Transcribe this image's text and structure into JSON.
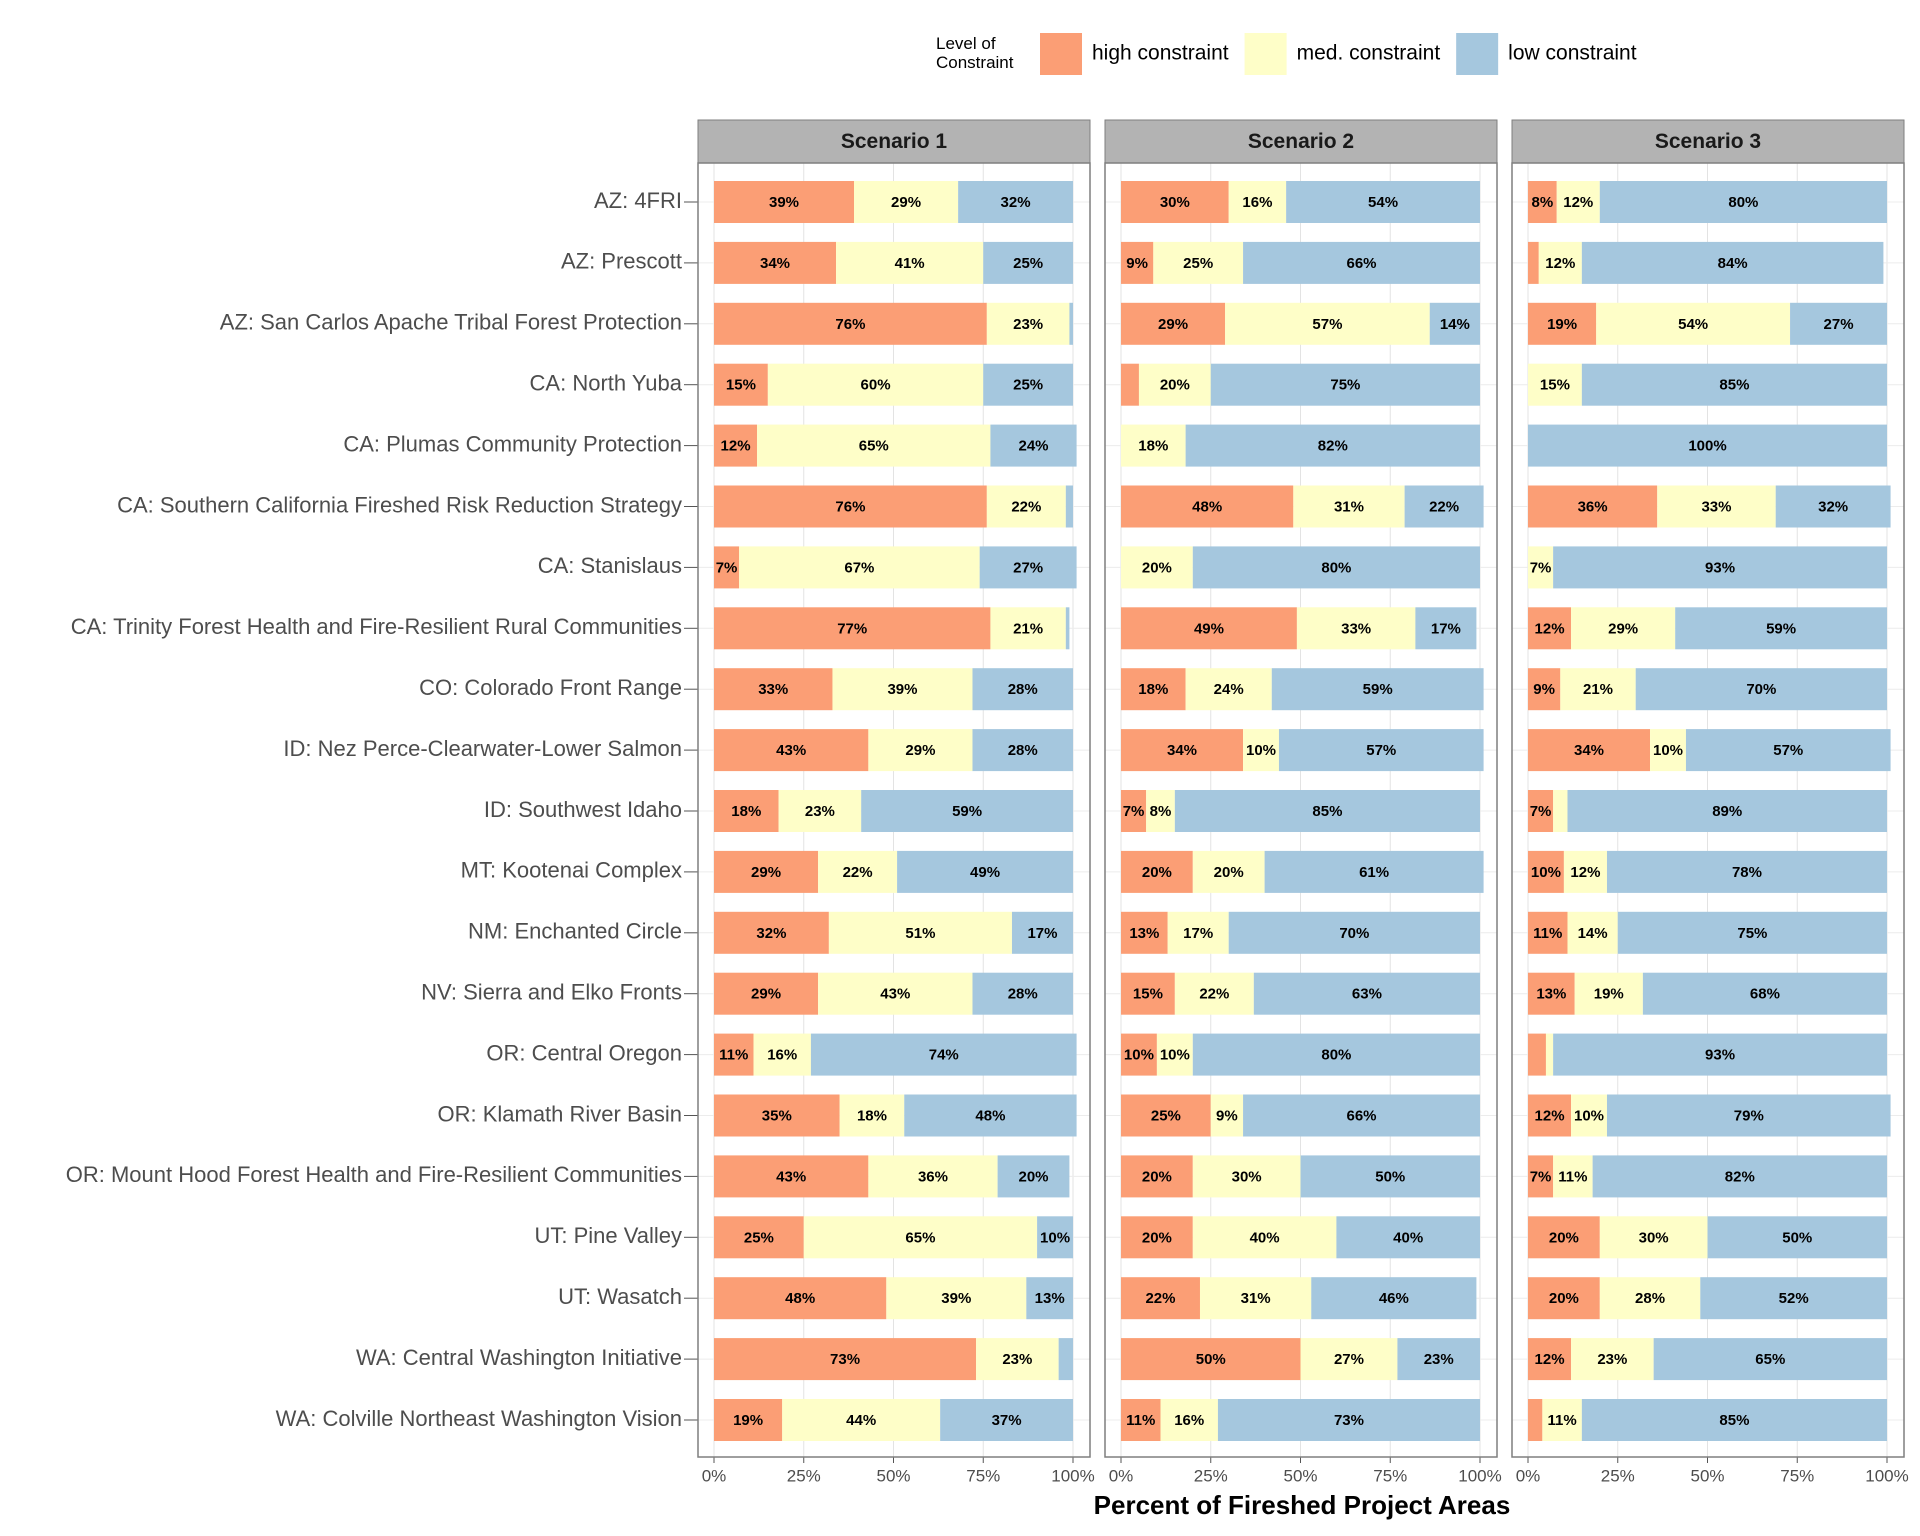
{
  "chart_data": {
    "type": "bar",
    "orientation": "horizontal",
    "stacked": true,
    "grid": true,
    "legend_title": "Level of Constraint",
    "legend_position": "top",
    "xlabel": "Percent of Fireshed Project Areas",
    "categories": [
      "AZ: 4FRI",
      "AZ: Prescott",
      "AZ: San Carlos Apache Tribal Forest Protection",
      "CA: North Yuba",
      "CA: Plumas Community Protection",
      "CA: Southern California Fireshed Risk Reduction Strategy",
      "CA: Stanislaus",
      "CA: Trinity Forest Health and Fire-Resilient Rural Communities",
      "CO: Colorado Front Range",
      "ID: Nez Perce-Clearwater-Lower Salmon",
      "ID: Southwest Idaho",
      "MT: Kootenai Complex",
      "NM: Enchanted Circle",
      "NV: Sierra and Elko Fronts",
      "OR: Central Oregon",
      "OR: Klamath River Basin",
      "OR: Mount Hood Forest Health and Fire-Resilient Communities",
      "UT: Pine Valley",
      "UT: Wasatch",
      "WA: Central Washington Initiative",
      "WA: Colville Northeast Washington Vision"
    ],
    "series": [
      {
        "name": "high constraint",
        "color": "#fb9e75"
      },
      {
        "name": "med. constraint",
        "color": "#fefec8"
      },
      {
        "name": "low constraint",
        "color": "#a5c7de"
      }
    ],
    "xlim": [
      0,
      100
    ],
    "xticks": [
      {
        "value": 0,
        "label": "0%"
      },
      {
        "value": 25,
        "label": "25%"
      },
      {
        "value": 50,
        "label": "50%"
      },
      {
        "value": 75,
        "label": "75%"
      },
      {
        "value": 100,
        "label": "100%"
      }
    ],
    "facets": [
      {
        "title": "Scenario 1",
        "series": [
          {
            "values": [
              39,
              34,
              76,
              15,
              12,
              76,
              7,
              77,
              33,
              43,
              18,
              29,
              32,
              29,
              11,
              35,
              43,
              25,
              48,
              73,
              19
            ],
            "value_labels": [
              "39%",
              "34%",
              "76%",
              "15%",
              "12%",
              "76%",
              "7%",
              "77%",
              "33%",
              "43%",
              "18%",
              "29%",
              "32%",
              "29%",
              "11%",
              "35%",
              "43%",
              "25%",
              "48%",
              "73%",
              "19%"
            ]
          },
          {
            "values": [
              29,
              41,
              23,
              60,
              65,
              22,
              67,
              21,
              39,
              29,
              23,
              22,
              51,
              43,
              16,
              18,
              36,
              65,
              39,
              23,
              44
            ],
            "value_labels": [
              "29%",
              "41%",
              "23%",
              "60%",
              "65%",
              "22%",
              "67%",
              "21%",
              "39%",
              "29%",
              "23%",
              "22%",
              "51%",
              "43%",
              "16%",
              "18%",
              "36%",
              "65%",
              "39%",
              "23%",
              "44%"
            ]
          },
          {
            "values": [
              32,
              25,
              1,
              25,
              24,
              2,
              27,
              1,
              28,
              28,
              59,
              49,
              17,
              28,
              74,
              48,
              20,
              10,
              13,
              4,
              37
            ],
            "value_labels": [
              "32%",
              "25%",
              null,
              "25%",
              "24%",
              null,
              "27%",
              null,
              "28%",
              "28%",
              "59%",
              "49%",
              "17%",
              "28%",
              "74%",
              "48%",
              "20%",
              "10%",
              "13%",
              null,
              "37%"
            ]
          }
        ]
      },
      {
        "title": "Scenario 2",
        "series": [
          {
            "values": [
              30,
              9,
              29,
              5,
              0,
              48,
              0,
              49,
              18,
              34,
              7,
              20,
              13,
              15,
              10,
              25,
              20,
              20,
              22,
              50,
              11
            ],
            "value_labels": [
              "30%",
              "9%",
              "29%",
              null,
              null,
              "48%",
              null,
              "49%",
              "18%",
              "34%",
              "7%",
              "20%",
              "13%",
              "15%",
              "10%",
              "25%",
              "20%",
              "20%",
              "22%",
              "50%",
              "11%"
            ]
          },
          {
            "values": [
              16,
              25,
              57,
              20,
              18,
              31,
              20,
              33,
              24,
              10,
              8,
              20,
              17,
              22,
              10,
              9,
              30,
              40,
              31,
              27,
              16
            ],
            "value_labels": [
              "16%",
              "25%",
              "57%",
              "20%",
              "18%",
              "31%",
              "20%",
              "33%",
              "24%",
              "10%",
              "8%",
              "20%",
              "17%",
              "22%",
              "10%",
              "9%",
              "30%",
              "40%",
              "31%",
              "27%",
              "16%"
            ]
          },
          {
            "values": [
              54,
              66,
              14,
              75,
              82,
              22,
              80,
              17,
              59,
              57,
              85,
              61,
              70,
              63,
              80,
              66,
              50,
              40,
              46,
              23,
              73
            ],
            "value_labels": [
              "54%",
              "66%",
              "14%",
              "75%",
              "82%",
              "22%",
              "80%",
              "17%",
              "59%",
              "57%",
              "85%",
              "61%",
              "70%",
              "63%",
              "80%",
              "66%",
              "50%",
              "40%",
              "46%",
              "23%",
              "73%"
            ]
          }
        ]
      },
      {
        "title": "Scenario 3",
        "series": [
          {
            "values": [
              8,
              3,
              19,
              0,
              0,
              36,
              0,
              12,
              9,
              34,
              7,
              10,
              11,
              13,
              5,
              12,
              7,
              20,
              20,
              12,
              4
            ],
            "value_labels": [
              "8%",
              null,
              "19%",
              null,
              null,
              "36%",
              null,
              "12%",
              "9%",
              "34%",
              "7%",
              "10%",
              "11%",
              "13%",
              null,
              "12%",
              "7%",
              "20%",
              "20%",
              "12%",
              null
            ]
          },
          {
            "values": [
              12,
              12,
              54,
              15,
              0,
              33,
              7,
              29,
              21,
              10,
              4,
              12,
              14,
              19,
              2,
              10,
              11,
              30,
              28,
              23,
              11
            ],
            "value_labels": [
              "12%",
              "12%",
              "54%",
              "15%",
              null,
              "33%",
              "7%",
              "29%",
              "21%",
              "10%",
              null,
              "12%",
              "14%",
              "19%",
              null,
              "10%",
              "11%",
              "30%",
              "28%",
              "23%",
              "11%"
            ]
          },
          {
            "values": [
              80,
              84,
              27,
              85,
              100,
              32,
              93,
              59,
              70,
              57,
              89,
              78,
              75,
              68,
              93,
              79,
              82,
              50,
              52,
              65,
              85
            ],
            "value_labels": [
              "80%",
              "84%",
              "27%",
              "85%",
              "100%",
              "32%",
              "93%",
              "59%",
              "70%",
              "57%",
              "89%",
              "78%",
              "75%",
              "68%",
              "93%",
              "79%",
              "82%",
              "50%",
              "52%",
              "65%",
              "85%"
            ]
          }
        ]
      }
    ]
  }
}
